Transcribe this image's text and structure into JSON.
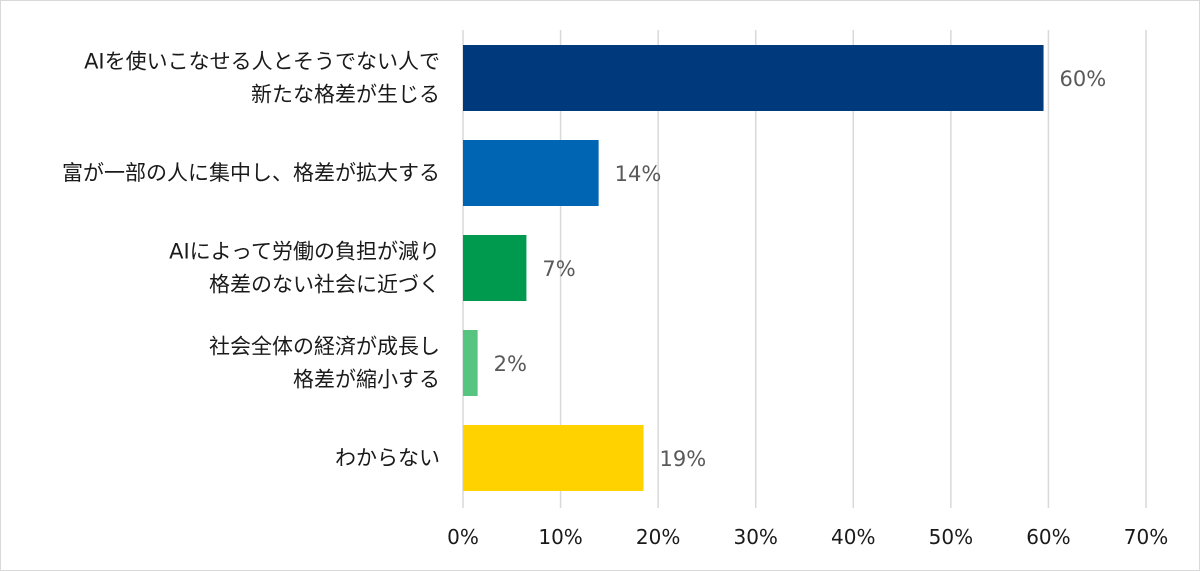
{
  "chart_data": {
    "type": "bar",
    "orientation": "horizontal",
    "title": "",
    "xlabel": "",
    "ylabel": "",
    "categories": [
      [
        "AIを使いこなせる人とそうでない人で",
        "新たな格差が生じる"
      ],
      [
        "富が一部の人に集中し、格差が拡大する"
      ],
      [
        "AIによって労働の負担が減り",
        "格差のない社会に近づく"
      ],
      [
        "社会全体の経済が成長し",
        "格差が縮小する"
      ],
      [
        "わからない"
      ]
    ],
    "values": [
      59.5,
      13.9,
      6.5,
      1.5,
      18.5
    ],
    "value_labels": [
      "60%",
      "14%",
      "7%",
      "2%",
      "19%"
    ],
    "colors": [
      "#003A7D",
      "#0066B3",
      "#009A4E",
      "#57C47F",
      "#FFD200"
    ],
    "xlim": [
      0,
      70
    ],
    "xticks": [
      0,
      10,
      20,
      30,
      40,
      50,
      60,
      70
    ],
    "xtick_labels": [
      "0%",
      "10%",
      "20%",
      "30%",
      "40%",
      "50%",
      "60%",
      "70%"
    ],
    "grid": true,
    "legend": "none"
  }
}
